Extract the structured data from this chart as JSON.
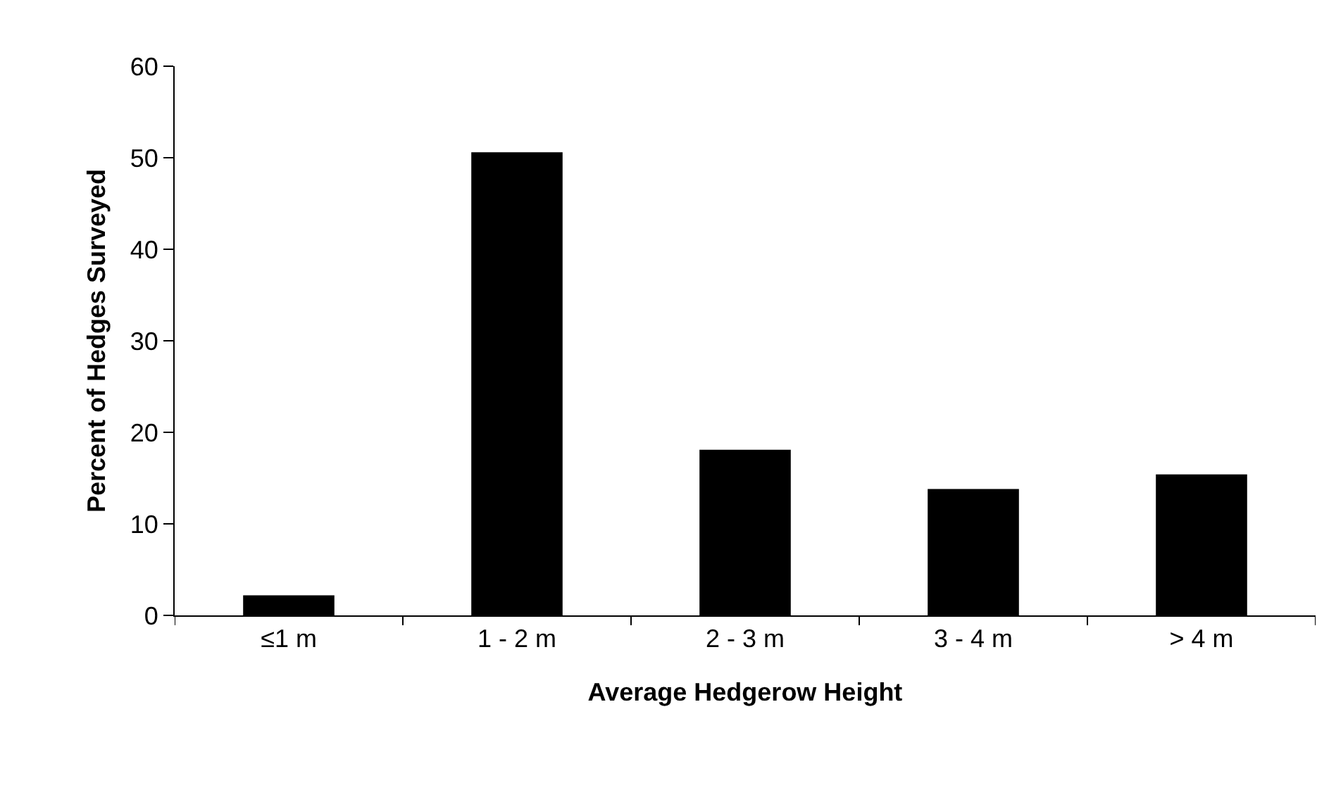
{
  "chart_data": {
    "type": "bar",
    "xlabel": "Average Hedgerow Height",
    "ylabel": "Percent of Hedges Surveyed",
    "categories": [
      "≤1 m",
      "1 - 2 m",
      "2 - 3 m",
      "3 - 4 m",
      "> 4 m"
    ],
    "values": [
      2.2,
      50.6,
      18.1,
      13.8,
      15.4
    ],
    "color": "#000000",
    "ylim": [
      0,
      60
    ],
    "yticks": [
      0,
      10,
      20,
      30,
      40,
      50,
      60
    ]
  }
}
